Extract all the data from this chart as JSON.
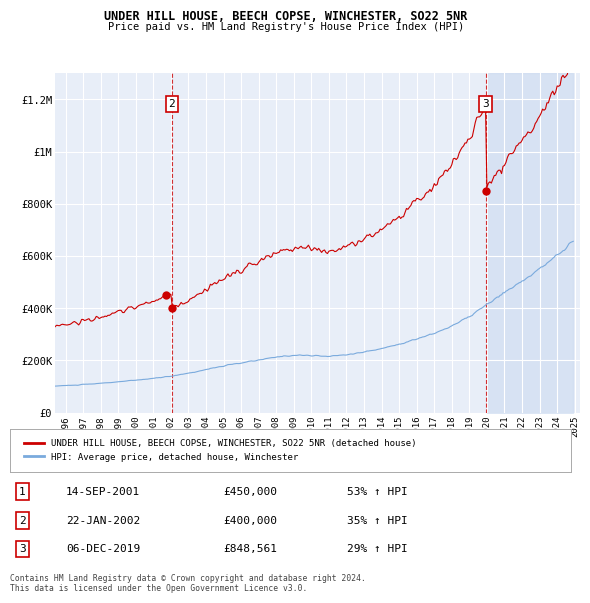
{
  "title": "UNDER HILL HOUSE, BEECH COPSE, WINCHESTER, SO22 5NR",
  "subtitle": "Price paid vs. HM Land Registry's House Price Index (HPI)",
  "ylabel_ticks": [
    "£0",
    "£200K",
    "£400K",
    "£600K",
    "£800K",
    "£1M",
    "£1.2M"
  ],
  "ytick_values": [
    0,
    200000,
    400000,
    600000,
    800000,
    1000000,
    1200000
  ],
  "ylim": [
    0,
    1300000
  ],
  "xlim_start": 1995.4,
  "xlim_end": 2025.3,
  "background_color": "#ffffff",
  "plot_bg_color": "#e8eef8",
  "grid_color": "#ffffff",
  "red_color": "#cc0000",
  "blue_color": "#7aaadd",
  "transactions": [
    {
      "num": 1,
      "date": "14-SEP-2001",
      "year": 2001.71,
      "price": 450000,
      "label": "1",
      "pct": "53%"
    },
    {
      "num": 2,
      "date": "22-JAN-2002",
      "year": 2002.06,
      "price": 400000,
      "label": "2",
      "pct": "35%"
    },
    {
      "num": 3,
      "date": "06-DEC-2019",
      "year": 2019.92,
      "price": 848561,
      "label": "3",
      "pct": "29%"
    }
  ],
  "legend_label_red": "UNDER HILL HOUSE, BEECH COPSE, WINCHESTER, SO22 5NR (detached house)",
  "legend_label_blue": "HPI: Average price, detached house, Winchester",
  "footer": "Contains HM Land Registry data © Crown copyright and database right 2024.\nThis data is licensed under the Open Government Licence v3.0.",
  "transaction1_vline_year": 2002.06,
  "transaction3_vline_year": 2019.92,
  "annotation1_label": "2",
  "annotation3_label": "3",
  "shade_start": 2019.92,
  "shade_end": 2025.3
}
